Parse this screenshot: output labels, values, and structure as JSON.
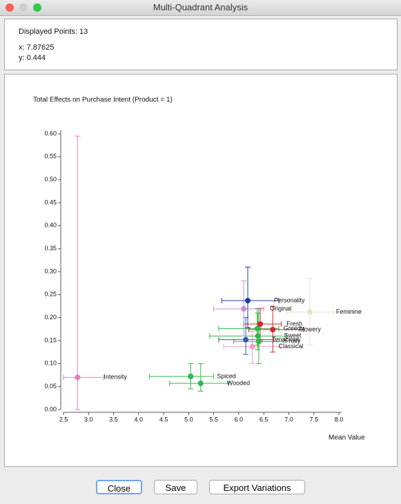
{
  "window_title": "Multi-Quadrant Analysis",
  "info": {
    "displayed_points": "Displayed Points: 13",
    "x": "x: 7.87625",
    "y": "y: 0.444"
  },
  "chart_data": {
    "type": "scatter",
    "title": "Total Effects on Purchase Intent (Product = 1)",
    "x_label": "Mean Value",
    "xlim": [
      2.5,
      8.0
    ],
    "ylim": [
      0,
      0.6
    ],
    "xticks": [
      {
        "value": 2.5,
        "label": "2.5"
      },
      {
        "value": 3,
        "label": "3.0"
      },
      {
        "value": 3.5,
        "label": "3.5"
      },
      {
        "value": 4,
        "label": "4.0"
      },
      {
        "value": 4.5,
        "label": "4.5"
      },
      {
        "value": 5,
        "label": "5.0"
      },
      {
        "value": 5.5,
        "label": "5.5"
      },
      {
        "value": 6,
        "label": "6.0"
      },
      {
        "value": 6.5,
        "label": "6.5"
      },
      {
        "value": 7,
        "label": "7.0"
      },
      {
        "value": 7.5,
        "label": "7.5"
      },
      {
        "value": 8,
        "label": "8.0"
      }
    ],
    "yticks": [
      {
        "value": 0,
        "label": "0.00"
      },
      {
        "value": 0.05,
        "label": "0.05"
      },
      {
        "value": 0.1,
        "label": "0.10"
      },
      {
        "value": 0.15,
        "label": "0.15"
      },
      {
        "value": 0.2,
        "label": "0.20"
      },
      {
        "value": 0.25,
        "label": "0.25"
      },
      {
        "value": 0.3,
        "label": "0.30"
      },
      {
        "value": 0.35,
        "label": "0.35"
      },
      {
        "value": 0.4,
        "label": "0.40"
      },
      {
        "value": 0.45,
        "label": "0.45"
      },
      {
        "value": 0.5,
        "label": "0.50"
      },
      {
        "value": 0.55,
        "label": "0.55"
      },
      {
        "value": 0.6,
        "label": "0.60"
      }
    ],
    "points": [
      {
        "name": "Intensity",
        "color": "#e57fbf",
        "x": 2.78,
        "y": 0.07,
        "x_low": 2.5,
        "x_high": 3.3,
        "y_low": 0.0,
        "y_high": 0.595
      },
      {
        "name": "Spiced",
        "color": "#2db84a",
        "x": 5.04,
        "y": 0.072,
        "x_low": 4.22,
        "x_high": 5.5,
        "y_low": 0.045,
        "y_high": 0.1
      },
      {
        "name": "Wooded",
        "color": "#2db84a",
        "x": 5.24,
        "y": 0.057,
        "x_low": 4.62,
        "x_high": 5.8,
        "y_low": 0.04,
        "y_high": 0.1
      },
      {
        "name": "Classical",
        "color": "#e9a0c8",
        "x": 6.27,
        "y": 0.137,
        "x_low": 5.7,
        "x_high": 6.83,
        "y_low": 0.1,
        "y_high": 0.17
      },
      {
        "name": "Fruity",
        "color": "#2db84a",
        "x": 6.4,
        "y": 0.148,
        "x_low": 5.9,
        "x_high": 6.9,
        "y_low": 0.1,
        "y_high": 0.22
      },
      {
        "name": "Tenacious",
        "color": "#2a5cb0",
        "x": 6.14,
        "y": 0.152,
        "x_low": 5.6,
        "x_high": 6.7,
        "y_low": 0.12,
        "y_high": 0.2
      },
      {
        "name": "Sweet",
        "color": "#2db84a",
        "x": 6.38,
        "y": 0.16,
        "x_low": 5.42,
        "x_high": 6.95,
        "y_low": 0.13,
        "y_high": 0.21
      },
      {
        "name": "Greedy",
        "color": "#2db84a",
        "x": 6.37,
        "y": 0.176,
        "x_low": 5.6,
        "x_high": 6.8,
        "y_low": 0.14,
        "y_high": 0.22
      },
      {
        "name": "Fresh",
        "color": "#d8262f",
        "x": 6.43,
        "y": 0.186,
        "x_low": 6.1,
        "x_high": 6.85,
        "y_low": 0.15,
        "y_high": 0.22
      },
      {
        "name": "Flowery",
        "color": "#d8262f",
        "x": 6.68,
        "y": 0.174,
        "x_low": 6.2,
        "x_high": 7.3,
        "y_low": 0.125,
        "y_high": 0.225
      },
      {
        "name": "Feminine",
        "color": "#e6e2cf",
        "x": 7.42,
        "y": 0.212,
        "x_low": 6.95,
        "x_high": 7.9,
        "y_low": 0.14,
        "y_high": 0.285
      },
      {
        "name": "Original",
        "color": "#c58fd0",
        "x": 6.1,
        "y": 0.219,
        "x_low": 5.5,
        "x_high": 6.5,
        "y_low": 0.16,
        "y_high": 0.28
      },
      {
        "name": "Personality",
        "color": "#243f93",
        "x": 6.18,
        "y": 0.237,
        "x_low": 5.66,
        "x_high": 6.8,
        "y_low": 0.178,
        "y_high": 0.31
      }
    ]
  },
  "buttons": [
    "Close",
    "Save",
    "Export Variations"
  ]
}
